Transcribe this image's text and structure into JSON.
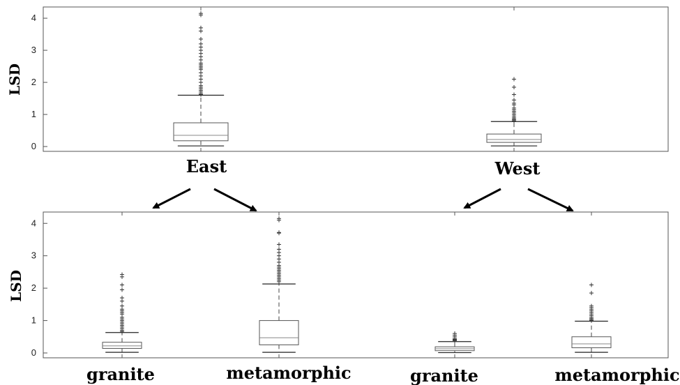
{
  "chart_data": [
    {
      "type": "box",
      "ylabel": "LSD",
      "ylim": [
        -0.15,
        4.35
      ],
      "yticks": [
        0,
        1,
        2,
        3,
        4
      ],
      "categories": [
        "East",
        "West"
      ],
      "boxes": [
        {
          "category": "East",
          "whisker_low": 0.02,
          "q1": 0.18,
          "median": 0.35,
          "q3": 0.74,
          "whisker_high": 1.6,
          "outliers": [
            1.62,
            1.65,
            1.7,
            1.75,
            1.8,
            1.85,
            1.9,
            2.0,
            2.1,
            2.2,
            2.3,
            2.4,
            2.45,
            2.5,
            2.55,
            2.6,
            2.7,
            2.8,
            2.9,
            3.0,
            3.1,
            3.2,
            3.35,
            3.6,
            3.7,
            4.1,
            4.15
          ]
        },
        {
          "category": "West",
          "whisker_low": 0.02,
          "q1": 0.13,
          "median": 0.22,
          "q3": 0.39,
          "whisker_high": 0.78,
          "outliers": [
            0.8,
            0.83,
            0.86,
            0.9,
            0.95,
            1.0,
            1.05,
            1.1,
            1.15,
            1.2,
            1.3,
            1.35,
            1.45,
            1.62,
            1.85,
            2.1
          ]
        }
      ]
    },
    {
      "type": "box",
      "ylabel": "LSD",
      "ylim": [
        -0.15,
        4.35
      ],
      "yticks": [
        0,
        1,
        2,
        3,
        4
      ],
      "categories": [
        "granite",
        "metamorphic",
        "granite",
        "metamorphic"
      ],
      "boxes": [
        {
          "category": "granite",
          "whisker_low": 0.02,
          "q1": 0.14,
          "median": 0.22,
          "q3": 0.33,
          "whisker_high": 0.63,
          "outliers": [
            0.66,
            0.7,
            0.75,
            0.8,
            0.85,
            0.9,
            0.95,
            1.0,
            1.05,
            1.1,
            1.2,
            1.25,
            1.3,
            1.35,
            1.45,
            1.6,
            1.7,
            1.95,
            2.1,
            2.35,
            2.42
          ]
        },
        {
          "category": "metamorphic",
          "whisker_low": 0.02,
          "q1": 0.25,
          "median": 0.47,
          "q3": 1.0,
          "whisker_high": 2.13,
          "outliers": [
            2.2,
            2.25,
            2.3,
            2.35,
            2.4,
            2.45,
            2.5,
            2.55,
            2.6,
            2.65,
            2.7,
            2.8,
            2.9,
            3.0,
            3.1,
            3.2,
            3.35,
            3.7,
            3.72,
            4.1,
            4.15
          ]
        },
        {
          "category": "granite",
          "whisker_low": 0.01,
          "q1": 0.07,
          "median": 0.13,
          "q3": 0.19,
          "whisker_high": 0.35,
          "outliers": [
            0.38,
            0.4,
            0.42,
            0.45,
            0.5,
            0.55,
            0.6
          ]
        },
        {
          "category": "metamorphic",
          "whisker_low": 0.02,
          "q1": 0.16,
          "median": 0.28,
          "q3": 0.5,
          "whisker_high": 0.98,
          "outliers": [
            1.0,
            1.03,
            1.06,
            1.1,
            1.15,
            1.2,
            1.25,
            1.3,
            1.35,
            1.4,
            1.45,
            1.85,
            2.1
          ]
        }
      ]
    }
  ]
}
